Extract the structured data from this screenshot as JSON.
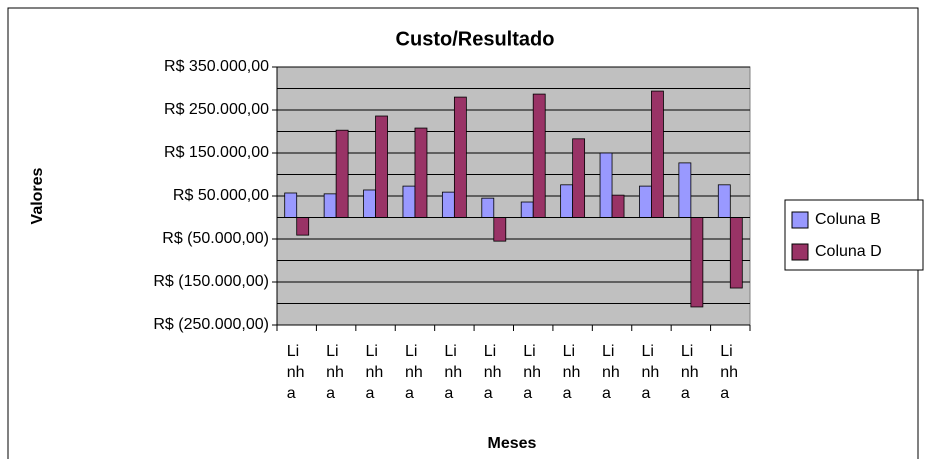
{
  "chart_data": {
    "type": "bar",
    "title": "Custo/Resultado",
    "x_label": "Meses",
    "y_label": "Valores",
    "categories": [
      "Linha",
      "Linha",
      "Linha",
      "Linha",
      "Linha",
      "Linha",
      "Linha",
      "Linha",
      "Linha",
      "Linha",
      "Linha",
      "Linha"
    ],
    "series": [
      {
        "name": "Coluna B",
        "color": "#9999ff",
        "values": [
          57000,
          55000,
          64000,
          73000,
          59000,
          45000,
          36000,
          76000,
          150000,
          73000,
          127000,
          76000
        ]
      },
      {
        "name": "Coluna D",
        "color": "#993366",
        "values": [
          -41000,
          203000,
          236000,
          208000,
          280000,
          -55000,
          287000,
          183000,
          52000,
          294000,
          -208000,
          -164000
        ]
      }
    ],
    "ylim": [
      -250000,
      350000
    ],
    "yticks": [
      {
        "value": 350000,
        "label": "R$ 350.000,00"
      },
      {
        "value": 250000,
        "label": "R$ 250.000,00"
      },
      {
        "value": 150000,
        "label": "R$ 150.000,00"
      },
      {
        "value": 50000,
        "label": "R$ 50.000,00"
      },
      {
        "value": -50000,
        "label": "R$ (50.000,00)"
      },
      {
        "value": -150000,
        "label": "R$ (150.000,00)"
      },
      {
        "value": -250000,
        "label": "R$ (250.000,00)"
      }
    ],
    "yminor": [
      300000,
      200000,
      100000,
      0,
      -100000,
      -200000
    ],
    "grid": true,
    "legend": "right"
  }
}
